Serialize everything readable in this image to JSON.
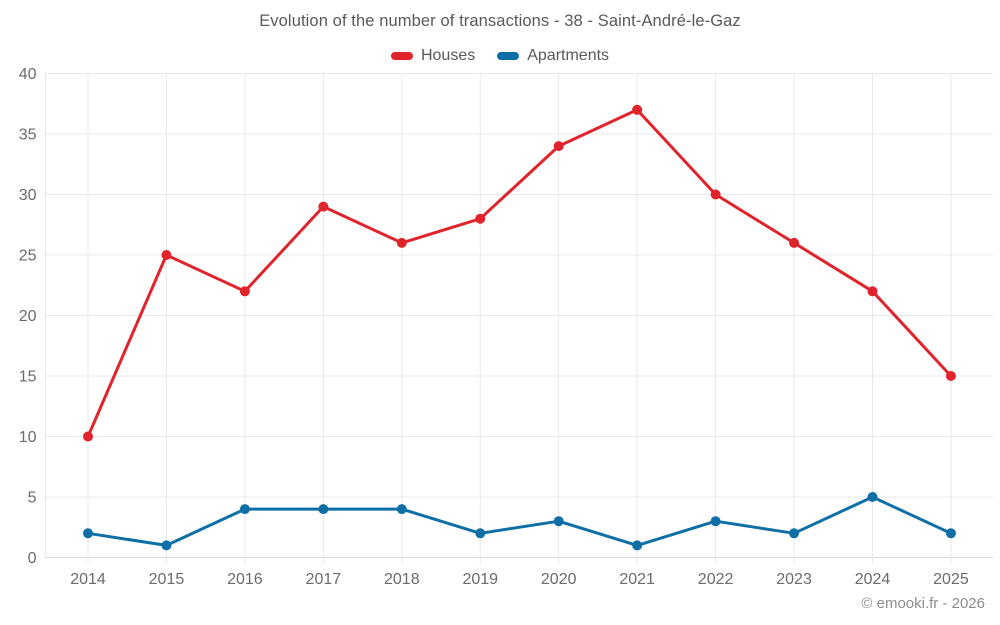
{
  "chart_data": {
    "type": "line",
    "title": "Evolution of the number of transactions - 38 - Saint-André-le-Gaz",
    "x": [
      2014,
      2015,
      2016,
      2017,
      2018,
      2019,
      2020,
      2021,
      2022,
      2023,
      2024,
      2025
    ],
    "series": [
      {
        "name": "Houses",
        "color": "#e0242b",
        "values": [
          10,
          25,
          22,
          29,
          26,
          28,
          34,
          37,
          30,
          26,
          22,
          15
        ]
      },
      {
        "name": "Apartments",
        "color": "#0e6fa6",
        "values": [
          2,
          1,
          4,
          4,
          4,
          2,
          3,
          1,
          3,
          2,
          5,
          2
        ]
      }
    ],
    "ylim": [
      0,
      40
    ],
    "ytick_step": 5,
    "yticks": [
      0,
      5,
      10,
      15,
      20,
      25,
      30,
      35,
      40
    ],
    "grid": true,
    "legend_position": "top",
    "xlabel": "",
    "ylabel": ""
  },
  "footer": {
    "copyright": "© emooki.fr - 2026"
  },
  "colors": {
    "background": "#ffffff",
    "grid": "#e8e8e8",
    "axis_line": "#dadada",
    "axis_labels": "#6b6b6b",
    "title_text": "#595959",
    "copyright_text": "#8c8c8c"
  }
}
